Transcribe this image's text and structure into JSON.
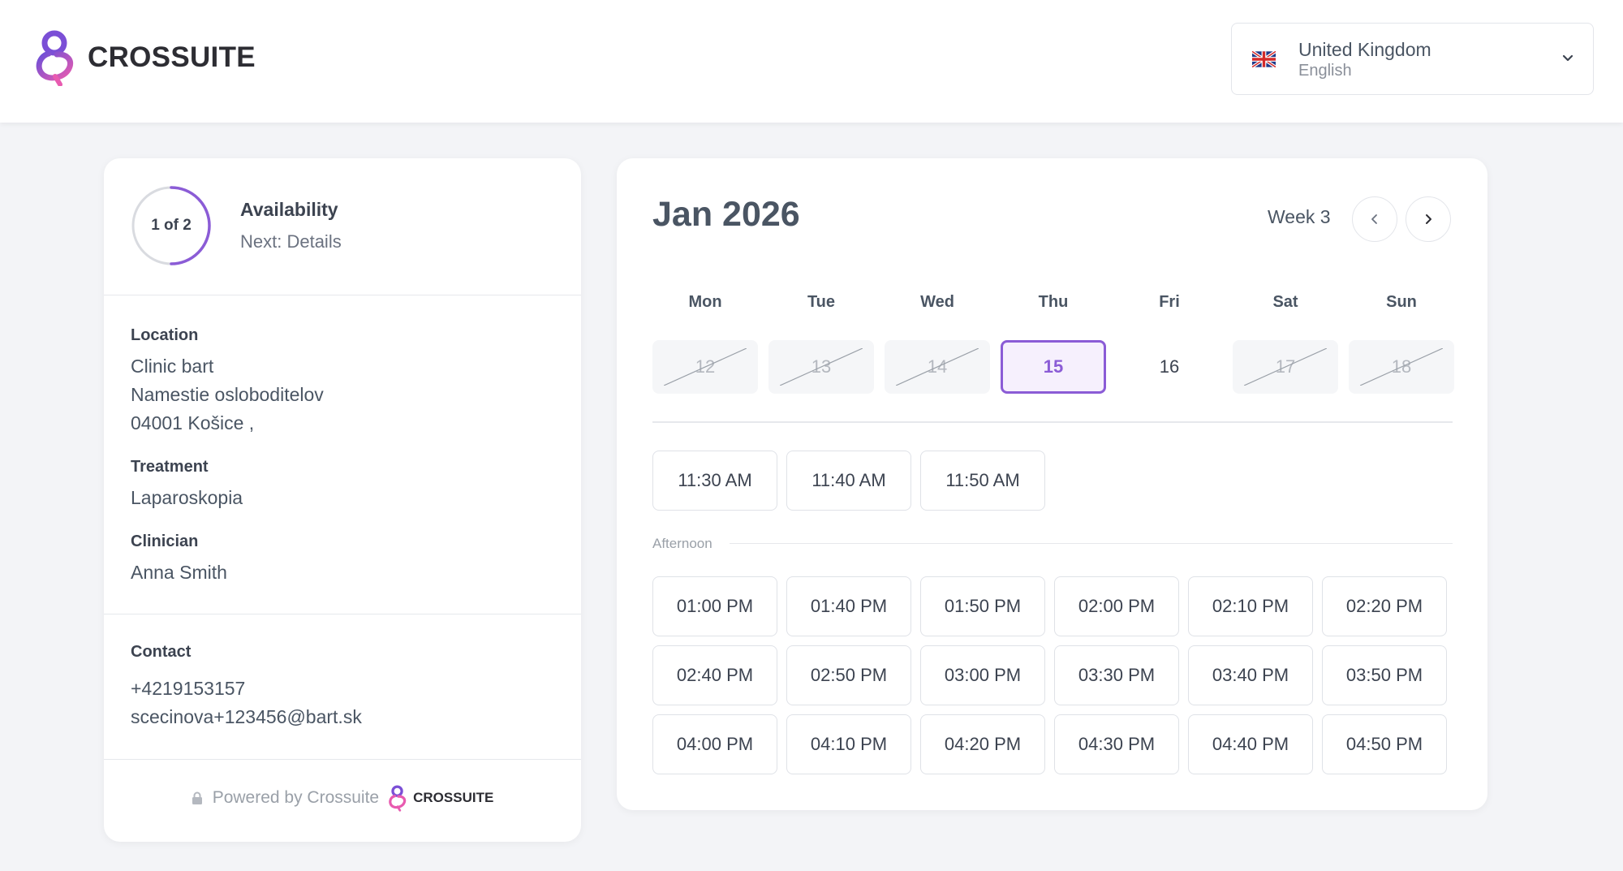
{
  "brand": {
    "name": "CROSSUITE"
  },
  "language_selector": {
    "country": "United Kingdom",
    "language": "English",
    "flag_icon": "uk-flag-icon"
  },
  "booking_summary": {
    "progress": {
      "label": "1 of 2",
      "current": 1,
      "total": 2
    },
    "step_title": "Availability",
    "next_step": "Next: Details",
    "location": {
      "label": "Location",
      "lines": [
        "Clinic bart",
        "Namestie osloboditelov",
        "04001 Košice ,"
      ]
    },
    "treatment": {
      "label": "Treatment",
      "value": "Laparoskopia"
    },
    "clinician": {
      "label": "Clinician",
      "value": "Anna Smith"
    },
    "contact": {
      "label": "Contact",
      "phone": "+4219153157",
      "email": "scecinova+123456@bart.sk"
    },
    "footer": {
      "powered_by": "Powered by Crossuite",
      "brand": "CROSSUITE"
    }
  },
  "calendar": {
    "month_title": "Jan 2026",
    "week_label": "Week 3",
    "days": [
      {
        "name": "Mon",
        "date": "12",
        "state": "disabled"
      },
      {
        "name": "Tue",
        "date": "13",
        "state": "disabled"
      },
      {
        "name": "Wed",
        "date": "14",
        "state": "disabled"
      },
      {
        "name": "Thu",
        "date": "15",
        "state": "selected"
      },
      {
        "name": "Fri",
        "date": "16",
        "state": "available"
      },
      {
        "name": "Sat",
        "date": "17",
        "state": "disabled"
      },
      {
        "name": "Sun",
        "date": "18",
        "state": "disabled"
      }
    ],
    "morning_slots": [
      "11:30 AM",
      "11:40 AM",
      "11:50 AM"
    ],
    "afternoon_label": "Afternoon",
    "afternoon_slots": [
      "01:00 PM",
      "01:40 PM",
      "01:50 PM",
      "02:00 PM",
      "02:10 PM",
      "02:20 PM",
      "02:40 PM",
      "02:50 PM",
      "03:00 PM",
      "03:30 PM",
      "03:40 PM",
      "03:50 PM",
      "04:00 PM",
      "04:10 PM",
      "04:20 PM",
      "04:30 PM",
      "04:40 PM",
      "04:50 PM"
    ]
  },
  "colors": {
    "accent": "#8b5cd6",
    "logo_pink": "#e85bb0",
    "logo_purple": "#7b4fd6"
  }
}
